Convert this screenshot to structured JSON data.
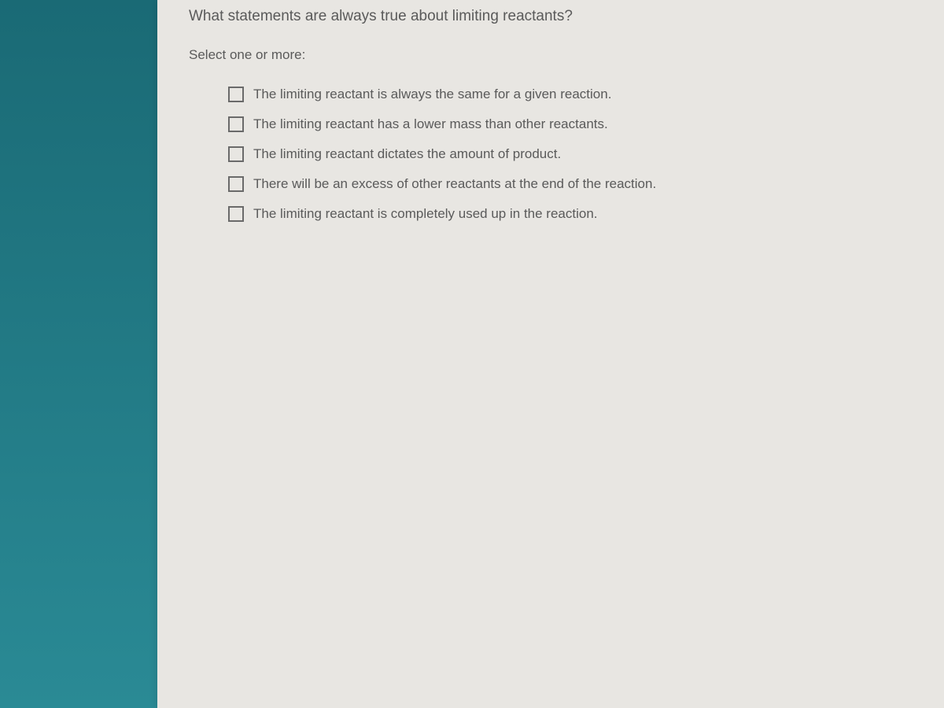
{
  "question": {
    "prompt": "What statements are always true about limiting reactants?",
    "instruction": "Select one or more:",
    "options": [
      {
        "label": "The limiting reactant is always the same for a given reaction.",
        "checked": false
      },
      {
        "label": "The limiting reactant has a lower mass than other reactants.",
        "checked": false
      },
      {
        "label": "The limiting reactant dictates the amount of product.",
        "checked": false
      },
      {
        "label": "There will be an excess of other reactants at the end of the reaction.",
        "checked": false
      },
      {
        "label": "The limiting reactant is completely used up in the reaction.",
        "checked": false
      }
    ]
  },
  "colors": {
    "sidebar_bg": "#1a7a85",
    "panel_bg": "#e8e6e2",
    "text_color": "#5a5a5a",
    "checkbox_border": "#6a6a6a"
  }
}
